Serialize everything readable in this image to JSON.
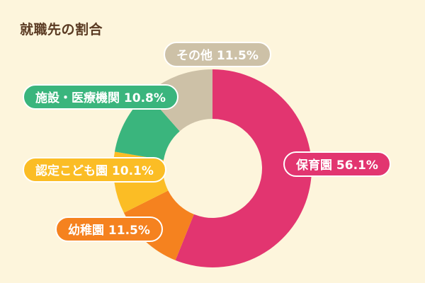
{
  "chart_data": {
    "type": "pie",
    "title": "就職先の割合",
    "donut": true,
    "start_angle_deg": 0,
    "direction": "clockwise",
    "slices": [
      {
        "label": "保育園",
        "value": 56.1,
        "display": "保育園 56.1%",
        "color": "#e23570"
      },
      {
        "label": "幼稚園",
        "value": 11.5,
        "display": "幼稚園 11.5%",
        "color": "#f5821f"
      },
      {
        "label": "認定こども園",
        "value": 10.1,
        "display": "認定こども園 10.1%",
        "color": "#fbbd25"
      },
      {
        "label": "施設・医療機関",
        "value": 10.8,
        "display": "施設・医療機関 10.8%",
        "color": "#3ab57d"
      },
      {
        "label": "その他",
        "value": 11.5,
        "display": "その他 11.5%",
        "color": "#cdc1a7"
      }
    ]
  }
}
